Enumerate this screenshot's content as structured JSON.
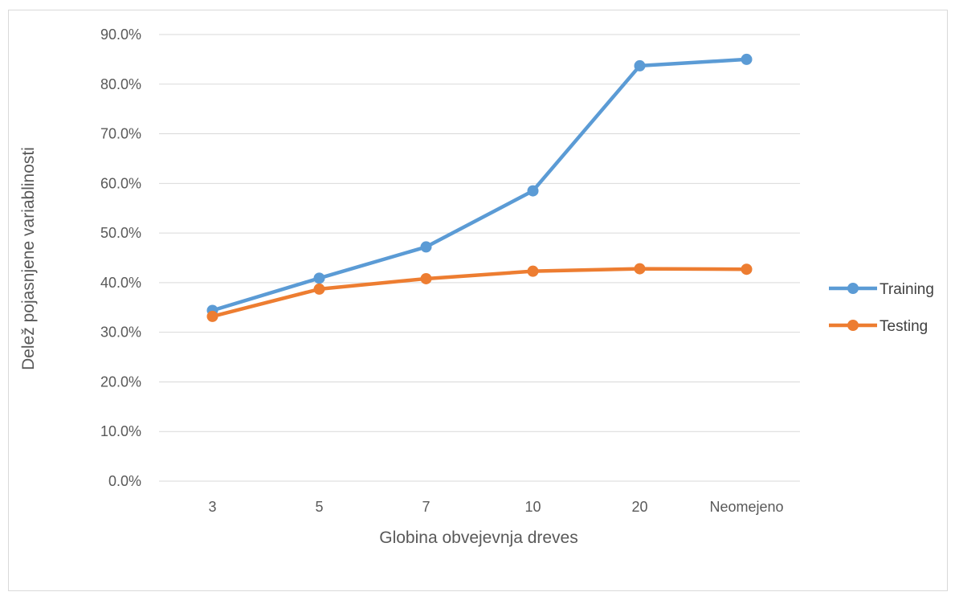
{
  "chart_data": {
    "type": "line",
    "title": "",
    "xlabel": "Globina obvejevnja dreves",
    "ylabel": "Delež pojasnjene variablinosti",
    "categories": [
      "3",
      "5",
      "7",
      "10",
      "20",
      "Neomejeno"
    ],
    "y_ticks": [
      "0.0%",
      "10.0%",
      "20.0%",
      "30.0%",
      "40.0%",
      "50.0%",
      "60.0%",
      "70.0%",
      "80.0%",
      "90.0%"
    ],
    "ylim": [
      0,
      90
    ],
    "y_unit": "%",
    "grid": true,
    "legend_position": "right",
    "series": [
      {
        "name": "Training",
        "color": "#5b9bd5",
        "values": [
          34.4,
          40.9,
          47.2,
          58.5,
          83.7,
          85.0
        ]
      },
      {
        "name": "Testing",
        "color": "#ed7d31",
        "values": [
          33.2,
          38.7,
          40.8,
          42.3,
          42.8,
          42.7
        ]
      }
    ]
  }
}
